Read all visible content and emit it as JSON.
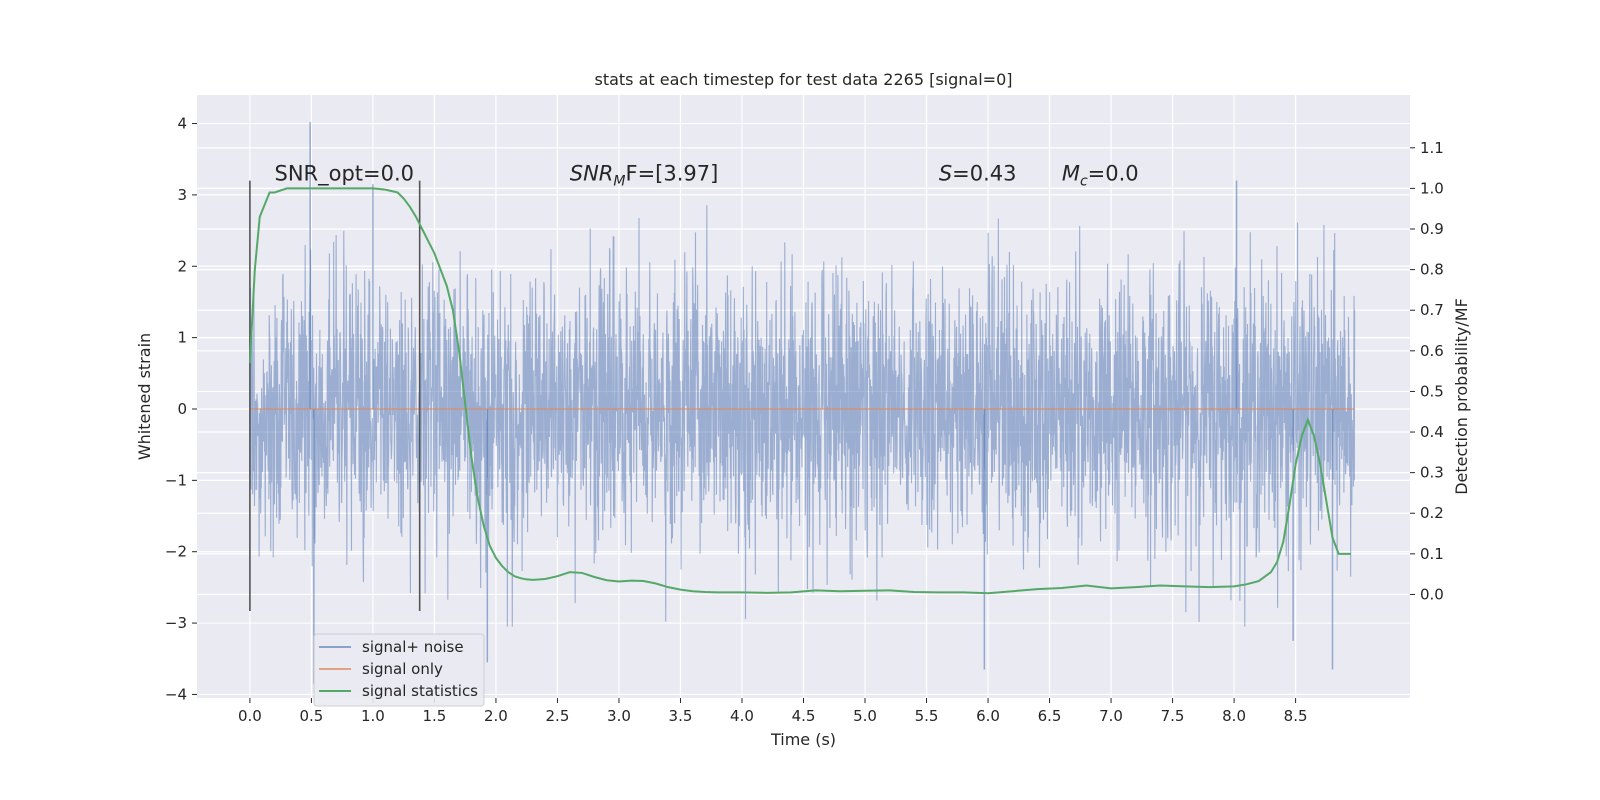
{
  "chart_data": {
    "type": "line",
    "title": "stats at each timestep for test data 2265 [signal=0]",
    "xlabel": "Time (s)",
    "ylabel": "Whitened strain",
    "y2label": "Detection probability/MF",
    "xlim": [
      -0.43,
      9.43
    ],
    "ylim": [
      -4.05,
      4.4
    ],
    "y2lim": [
      -0.255,
      1.23
    ],
    "x_ticks": [
      0.0,
      0.5,
      1.0,
      1.5,
      2.0,
      2.5,
      3.0,
      3.5,
      4.0,
      4.5,
      5.0,
      5.5,
      6.0,
      6.5,
      7.0,
      7.5,
      8.0,
      8.5
    ],
    "x_tick_labels": [
      "0.0",
      "0.5",
      "1.0",
      "1.5",
      "2.0",
      "2.5",
      "3.0",
      "3.5",
      "4.0",
      "4.5",
      "5.0",
      "5.5",
      "6.0",
      "6.5",
      "7.0",
      "7.5",
      "8.0",
      "8.5"
    ],
    "y_ticks": [
      4,
      3,
      2,
      1,
      0,
      -1,
      -2,
      -3,
      -4
    ],
    "y_tick_labels": [
      "4",
      "3",
      "2",
      "1",
      "0",
      "−1",
      "−2",
      "−3",
      "−4"
    ],
    "y2_ticks": [
      1.1,
      1.0,
      0.9,
      0.8,
      0.7,
      0.6,
      0.5,
      0.4,
      0.3,
      0.2,
      0.1,
      0.0
    ],
    "y2_tick_labels": [
      "1.1",
      "1.0",
      "0.9",
      "0.8",
      "0.7",
      "0.6",
      "0.5",
      "0.4",
      "0.3",
      "0.2",
      "0.1",
      "0.0"
    ],
    "grid": true,
    "legend_position": "lower-left",
    "annotations": [
      {
        "text": "SNR_opt=0.0",
        "x": 0.2,
        "y": 3.2
      },
      {
        "text_main": "SNR",
        "text_sub": "M",
        "text_tail": "F=[3.97]",
        "x": 2.6,
        "y": 3.2
      },
      {
        "text_main": "S",
        "text_sub": "",
        "text_tail": "=0.43",
        "x": 5.6,
        "y": 3.2
      },
      {
        "text_main": "M",
        "text_sub": "c",
        "text_tail": "=0.0",
        "x": 6.6,
        "y": 3.2
      }
    ],
    "vlines": [
      {
        "x": 0.0,
        "ymin": -2.83,
        "ymax": 3.2
      },
      {
        "x": 1.38,
        "ymin": -2.83,
        "ymax": 3.2
      }
    ],
    "series": [
      {
        "name": "signal+ noise",
        "color": "#4c72b0",
        "alpha": 0.5,
        "x_start": 0.0,
        "x_end": 8.98,
        "band_sigma": 0.95,
        "noise_seed": 2265,
        "peaks": [
          {
            "x": 0.49,
            "y": 4.02
          },
          {
            "x": 0.52,
            "y": -3.85
          },
          {
            "x": 1.0,
            "y": 3.15
          },
          {
            "x": 1.93,
            "y": -3.55
          },
          {
            "x": 8.8,
            "y": -3.65
          },
          {
            "x": 5.97,
            "y": -3.65
          },
          {
            "x": 8.02,
            "y": 3.2
          },
          {
            "x": 8.48,
            "y": -3.25
          }
        ]
      },
      {
        "name": "signal only",
        "color": "#dd8452",
        "x": [
          0.0,
          8.98
        ],
        "y": [
          0.0,
          0.0
        ]
      },
      {
        "name": "signal statistics",
        "color": "#55a868",
        "axis": "right",
        "x": [
          0.0,
          0.04,
          0.08,
          0.12,
          0.16,
          0.2,
          0.3,
          0.4,
          0.5,
          0.6,
          0.7,
          0.8,
          0.9,
          1.0,
          1.1,
          1.2,
          1.25,
          1.3,
          1.35,
          1.4,
          1.45,
          1.5,
          1.55,
          1.6,
          1.65,
          1.7,
          1.75,
          1.8,
          1.85,
          1.9,
          1.95,
          2.0,
          2.05,
          2.1,
          2.15,
          2.2,
          2.25,
          2.3,
          2.4,
          2.5,
          2.6,
          2.7,
          2.8,
          2.9,
          3.0,
          3.1,
          3.2,
          3.3,
          3.4,
          3.5,
          3.6,
          3.7,
          3.8,
          3.9,
          4.0,
          4.2,
          4.4,
          4.6,
          4.8,
          5.0,
          5.2,
          5.4,
          5.6,
          5.8,
          6.0,
          6.2,
          6.4,
          6.6,
          6.8,
          7.0,
          7.2,
          7.4,
          7.6,
          7.8,
          8.0,
          8.1,
          8.2,
          8.3,
          8.35,
          8.4,
          8.45,
          8.5,
          8.55,
          8.6,
          8.65,
          8.7,
          8.75,
          8.8,
          8.85,
          8.9,
          8.95
        ],
        "y": [
          0.57,
          0.8,
          0.93,
          0.96,
          0.99,
          0.99,
          1.0,
          1.0,
          1.0,
          1.0,
          1.0,
          1.0,
          1.0,
          1.0,
          0.997,
          0.99,
          0.975,
          0.955,
          0.93,
          0.9,
          0.87,
          0.84,
          0.8,
          0.76,
          0.7,
          0.6,
          0.47,
          0.34,
          0.24,
          0.17,
          0.12,
          0.09,
          0.07,
          0.055,
          0.045,
          0.04,
          0.037,
          0.036,
          0.038,
          0.045,
          0.055,
          0.053,
          0.043,
          0.035,
          0.032,
          0.034,
          0.033,
          0.027,
          0.018,
          0.012,
          0.008,
          0.006,
          0.005,
          0.005,
          0.005,
          0.004,
          0.005,
          0.01,
          0.008,
          0.009,
          0.01,
          0.006,
          0.005,
          0.005,
          0.003,
          0.008,
          0.013,
          0.016,
          0.022,
          0.015,
          0.018,
          0.022,
          0.02,
          0.018,
          0.02,
          0.025,
          0.033,
          0.055,
          0.08,
          0.13,
          0.22,
          0.32,
          0.39,
          0.43,
          0.39,
          0.32,
          0.23,
          0.14,
          0.1,
          0.1,
          0.1
        ]
      }
    ],
    "legend": [
      "signal+ noise",
      "signal only",
      "signal statistics"
    ]
  }
}
